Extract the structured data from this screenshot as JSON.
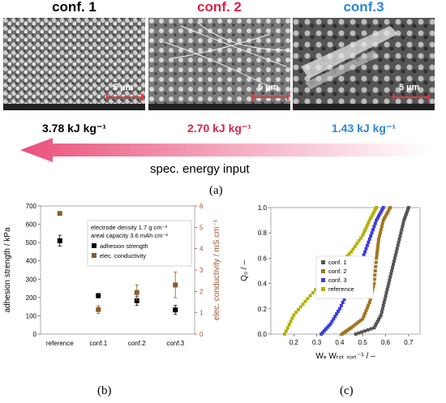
{
  "top": {
    "panels": [
      {
        "title": "conf. 1",
        "title_color": "#000000",
        "energy": "3.78 kJ kg⁻¹",
        "energy_color": "#000000",
        "scalebar": "5 µm"
      },
      {
        "title": "conf. 2",
        "title_color": "#d9244a",
        "energy": "2.70 kJ kg⁻¹",
        "energy_color": "#d9244a",
        "scalebar": "5 µm"
      },
      {
        "title": "conf.3",
        "title_color": "#2f86d6",
        "energy": "1.43 kJ kg⁻¹",
        "energy_color": "#2f86d6",
        "scalebar": "5 µm"
      }
    ],
    "arrow_label": "spec. energy input",
    "panel_label": "(a)"
  },
  "chart_b": {
    "panel_label": "(b)",
    "chart_data": {
      "type": "scatter",
      "categories": [
        "reference",
        "conf.1",
        "conf.2",
        "conf.3"
      ],
      "ylabel_left": "adhesion strength / kPa",
      "ylabel_right": "elec. conductivity / mS cm⁻¹",
      "ylim_left": [
        0,
        700
      ],
      "ylim_right": [
        0,
        6
      ],
      "yticks_left": [
        "0",
        "100",
        "200",
        "300",
        "400",
        "500",
        "600",
        "700"
      ],
      "yticks_right": [
        "0",
        "1",
        "2",
        "3",
        "4",
        "5",
        "6"
      ],
      "legend_header": [
        "electrode density 1.7 g cm⁻³",
        "areal capacity 3.6 mAh cm⁻²"
      ],
      "series": [
        {
          "name": "adhesion strength",
          "color": "#000000",
          "axis": "left",
          "values": [
            510,
            210,
            182,
            132
          ],
          "errors": [
            30,
            12,
            25,
            25
          ]
        },
        {
          "name": "elec. conductivity",
          "color": "#8b5a2b",
          "axis": "right",
          "values": [
            5.65,
            1.15,
            1.95,
            2.3
          ],
          "errors": [
            0.05,
            0.18,
            0.35,
            0.6
          ]
        }
      ]
    }
  },
  "chart_c": {
    "panel_label": "(c)",
    "chart_data": {
      "type": "scatter",
      "xlabel": "Wₑ Wₜₒₜ ₛₒᵣₜ⁻¹  /  –",
      "ylabel": "Q₀ / –",
      "xlim": [
        0.1,
        0.75
      ],
      "ylim": [
        0,
        1.0
      ],
      "xticks": [
        "0.2",
        "0.3",
        "0.4",
        "0.5",
        "0.6",
        "0.7"
      ],
      "yticks": [
        "0.0",
        "0.2",
        "0.4",
        "0.6",
        "0.8",
        "1.0"
      ],
      "series": [
        {
          "name": "conf. 1",
          "color": "#555555",
          "x": [
            0.47,
            0.55,
            0.58,
            0.6,
            0.62,
            0.64,
            0.66,
            0.68,
            0.7
          ],
          "y": [
            0.0,
            0.05,
            0.15,
            0.3,
            0.45,
            0.6,
            0.75,
            0.9,
            1.0
          ]
        },
        {
          "name": "conf. 2",
          "color": "#a0741e",
          "x": [
            0.41,
            0.45,
            0.5,
            0.53,
            0.55,
            0.56,
            0.57,
            0.59,
            0.62
          ],
          "y": [
            0.0,
            0.05,
            0.12,
            0.25,
            0.4,
            0.6,
            0.75,
            0.9,
            1.0
          ]
        },
        {
          "name": "conf. 3",
          "color": "#3a3adb",
          "x": [
            0.32,
            0.36,
            0.4,
            0.44,
            0.48,
            0.5,
            0.53,
            0.56,
            0.59
          ],
          "y": [
            0.0,
            0.08,
            0.2,
            0.35,
            0.5,
            0.6,
            0.75,
            0.9,
            1.0
          ]
        },
        {
          "name": "reference",
          "color": "#b5b000",
          "x": [
            0.16,
            0.2,
            0.26,
            0.33,
            0.4,
            0.45,
            0.5,
            0.53,
            0.56
          ],
          "y": [
            0.0,
            0.15,
            0.28,
            0.42,
            0.55,
            0.65,
            0.78,
            0.9,
            1.0
          ]
        }
      ]
    }
  }
}
